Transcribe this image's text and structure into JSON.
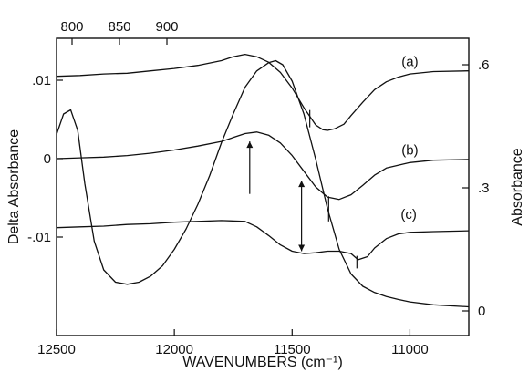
{
  "chart_data": {
    "type": "line",
    "title": "",
    "xlabel_bottom": "WAVENUMBERS (cm⁻¹)",
    "xlabel_top": "",
    "ylabel_left": "Delta Absorbance",
    "ylabel_right": "Absorbance",
    "x_bottom_range": [
      12500,
      10750
    ],
    "x_bottom_ticks": [
      "12500",
      "12000",
      "11500",
      "11000"
    ],
    "x_top_ticks": [
      "800",
      "850",
      "900"
    ],
    "y_left_ticks": [
      ".01",
      "0",
      "-.01"
    ],
    "y_right_ticks": [
      ".6",
      ".3",
      "0"
    ],
    "grid": false,
    "series": [
      {
        "name": "(a)",
        "axis": "left",
        "x": [
          12500,
          12400,
          12300,
          12200,
          12100,
          12000,
          11900,
          11800,
          11750,
          11700,
          11650,
          11600,
          11550,
          11500,
          11450,
          11400,
          11370,
          11350,
          11320,
          11280,
          11250,
          11200,
          11150,
          11100,
          11050,
          11000,
          10900,
          10750
        ],
        "y": [
          0.0105,
          0.0106,
          0.0108,
          0.0109,
          0.0112,
          0.0115,
          0.0119,
          0.0125,
          0.013,
          0.0133,
          0.013,
          0.0123,
          0.011,
          0.009,
          0.0065,
          0.0043,
          0.0037,
          0.0036,
          0.0038,
          0.0044,
          0.0055,
          0.0072,
          0.0088,
          0.0098,
          0.0104,
          0.0108,
          0.0111,
          0.0112
        ]
      },
      {
        "name": "(b)",
        "axis": "left",
        "x": [
          12500,
          12400,
          12300,
          12200,
          12100,
          12000,
          11900,
          11800,
          11750,
          11700,
          11650,
          11600,
          11550,
          11500,
          11450,
          11400,
          11350,
          11300,
          11250,
          11200,
          11150,
          11100,
          11000,
          10900,
          10750
        ],
        "y": [
          0.0,
          0.0001,
          0.0002,
          0.0004,
          0.0007,
          0.0011,
          0.0016,
          0.0022,
          0.0027,
          0.0032,
          0.0034,
          0.003,
          0.002,
          0.0004,
          -0.0016,
          -0.0036,
          -0.0049,
          -0.0052,
          -0.0046,
          -0.0034,
          -0.0021,
          -0.0012,
          -0.0005,
          -0.0002,
          -0.0001
        ]
      },
      {
        "name": "(c)",
        "axis": "left",
        "x": [
          12500,
          12400,
          12300,
          12200,
          12100,
          12000,
          11900,
          11800,
          11700,
          11650,
          11600,
          11550,
          11500,
          11450,
          11400,
          11350,
          11300,
          11250,
          11220,
          11180,
          11150,
          11100,
          11050,
          11000,
          10900,
          10750
        ],
        "y": [
          -0.0088,
          -0.0087,
          -0.0086,
          -0.0084,
          -0.0083,
          -0.0081,
          -0.008,
          -0.0079,
          -0.008,
          -0.0087,
          -0.0098,
          -0.011,
          -0.0118,
          -0.0121,
          -0.012,
          -0.0118,
          -0.0118,
          -0.0121,
          -0.0129,
          -0.0125,
          -0.0114,
          -0.0102,
          -0.0096,
          -0.0094,
          -0.0093,
          -0.0092
        ]
      },
      {
        "name": "absorbance",
        "axis": "right",
        "x": [
          12500,
          12470,
          12440,
          12410,
          12380,
          12340,
          12300,
          12250,
          12200,
          12150,
          12100,
          12050,
          12000,
          11950,
          11900,
          11850,
          11800,
          11750,
          11700,
          11650,
          11600,
          11570,
          11540,
          11500,
          11450,
          11400,
          11350,
          11300,
          11250,
          11200,
          11150,
          11100,
          11050,
          11000,
          10900,
          10750
        ],
        "y": [
          0.43,
          0.48,
          0.49,
          0.44,
          0.31,
          0.17,
          0.1,
          0.07,
          0.065,
          0.07,
          0.085,
          0.11,
          0.15,
          0.2,
          0.26,
          0.33,
          0.41,
          0.48,
          0.545,
          0.585,
          0.605,
          0.61,
          0.6,
          0.56,
          0.48,
          0.37,
          0.25,
          0.15,
          0.09,
          0.06,
          0.045,
          0.035,
          0.028,
          0.022,
          0.015,
          0.01
        ]
      }
    ],
    "annotations": [
      {
        "type": "arrow-up",
        "x": 11680,
        "y_from": -0.0045,
        "y_to": 0.0022
      },
      {
        "type": "double-arrow",
        "x": 11460,
        "y_from": -0.0028,
        "y_to": -0.0118
      },
      {
        "type": "tick-mark",
        "x": 11425,
        "y_from": 0.004,
        "y_to": 0.0062
      },
      {
        "type": "tick-mark",
        "x": 11345,
        "y_from": -0.0048,
        "y_to": -0.008
      },
      {
        "type": "tick-mark",
        "x": 11225,
        "y_from": -0.0124,
        "y_to": -0.014
      }
    ]
  }
}
